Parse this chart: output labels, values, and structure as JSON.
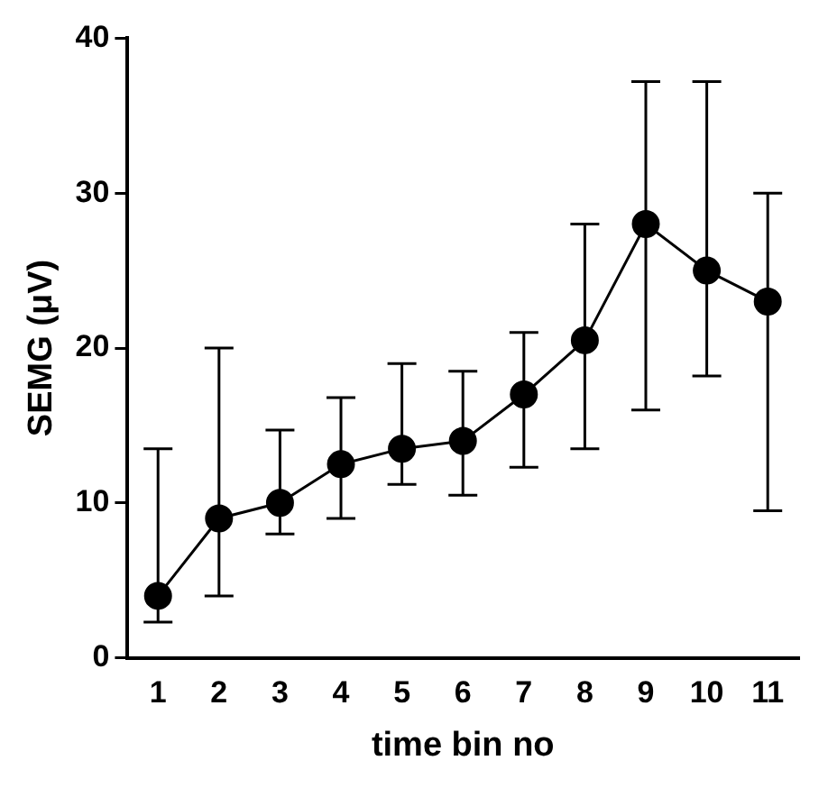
{
  "chart_data": {
    "type": "line",
    "xlabel": "time bin no",
    "ylabel": "SEMG (μV)",
    "categories": [
      "1",
      "2",
      "3",
      "4",
      "5",
      "6",
      "7",
      "8",
      "9",
      "10",
      "11"
    ],
    "series": [
      {
        "color": "#000000",
        "values": [
          4,
          9,
          10,
          12.5,
          13.5,
          14,
          17,
          20.5,
          28,
          25,
          23
        ],
        "errors": [
          [
            2.3,
            13.5
          ],
          [
            4,
            20
          ],
          [
            8,
            14.7
          ],
          [
            9,
            16.8
          ],
          [
            11.2,
            19
          ],
          [
            10.5,
            18.5
          ],
          [
            12.3,
            21
          ],
          [
            13.5,
            28
          ],
          [
            16,
            37.2
          ],
          [
            18.2,
            37.2
          ],
          [
            9.5,
            30
          ]
        ]
      }
    ],
    "ylim": [
      0,
      40
    ],
    "yticks": [
      0,
      10,
      20,
      30,
      40
    ],
    "grid": false,
    "legend": false,
    "marker": "circle",
    "line_style": "solid"
  }
}
